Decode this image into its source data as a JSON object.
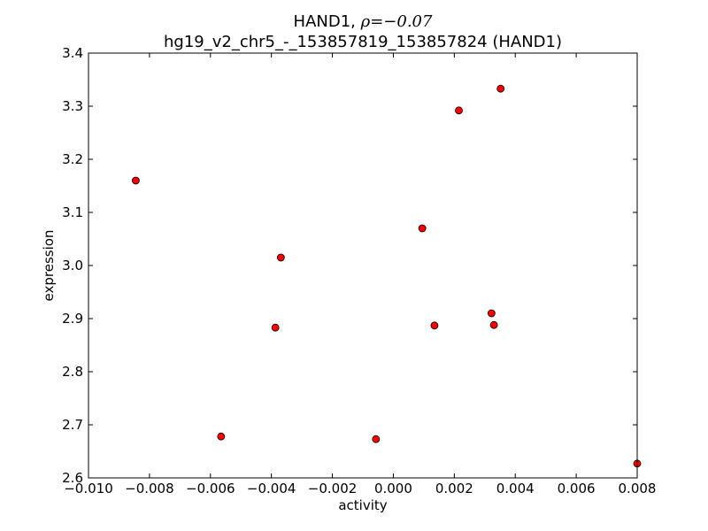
{
  "chart_data": {
    "type": "scatter",
    "title": "HAND1, ρ=−0.07",
    "title_line1_text": "HAND1, ",
    "title_line1_math": "ρ=−0.07",
    "subtitle": "hg19_v2_chr5_-_153857819_153857824 (HAND1)",
    "xlabel": "activity",
    "ylabel": "expression",
    "xlim": [
      -0.01,
      0.008
    ],
    "ylim": [
      2.6,
      3.4
    ],
    "xticks": [
      -0.01,
      -0.008,
      -0.006,
      -0.004,
      -0.002,
      0.0,
      0.002,
      0.004,
      0.006,
      0.008
    ],
    "xtick_labels": [
      "−0.010",
      "−0.008",
      "−0.006",
      "−0.004",
      "−0.002",
      "0.000",
      "0.002",
      "0.004",
      "0.006",
      "0.008"
    ],
    "yticks": [
      2.6,
      2.7,
      2.8,
      2.9,
      3.0,
      3.1,
      3.2,
      3.3,
      3.4
    ],
    "ytick_labels": [
      "2.6",
      "2.7",
      "2.8",
      "2.9",
      "3.0",
      "3.1",
      "3.2",
      "3.3",
      "3.4"
    ],
    "grid": false,
    "marker_color": "#ff0000",
    "marker_edge_color": "#000000",
    "points": [
      {
        "x": -0.00845,
        "y": 3.16
      },
      {
        "x": -0.00565,
        "y": 2.678
      },
      {
        "x": -0.00387,
        "y": 2.883
      },
      {
        "x": -0.00369,
        "y": 3.015
      },
      {
        "x": -0.00057,
        "y": 2.673
      },
      {
        "x": 0.00095,
        "y": 3.07
      },
      {
        "x": 0.00135,
        "y": 2.887
      },
      {
        "x": 0.00215,
        "y": 3.292
      },
      {
        "x": 0.00322,
        "y": 2.91
      },
      {
        "x": 0.0033,
        "y": 2.888
      },
      {
        "x": 0.00352,
        "y": 3.333
      },
      {
        "x": 0.008,
        "y": 2.627
      }
    ]
  }
}
